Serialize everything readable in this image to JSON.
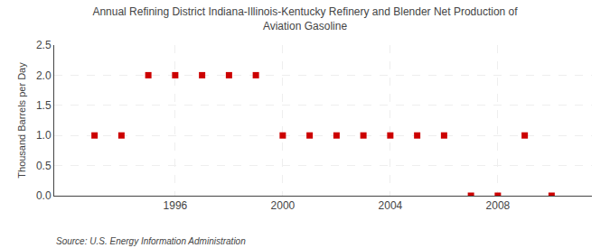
{
  "chart_data": {
    "type": "scatter",
    "title": "Annual Refining District Indiana-Illinois-Kentucky Refinery and Blender Net Production of\nAviation Gasoline",
    "ylabel": "Thousand Barrels per Day",
    "annotations": [
      "Source: U.S. Energy Information Administration"
    ],
    "x": [
      1993,
      1994,
      1995,
      1996,
      1997,
      1998,
      1999,
      2000,
      2001,
      2002,
      2003,
      2004,
      2005,
      2006,
      2007,
      2008,
      2009,
      2010
    ],
    "values": [
      1,
      1,
      2,
      2,
      2,
      2,
      2,
      1,
      1,
      1,
      1,
      1,
      1,
      1,
      0,
      0,
      1,
      0
    ],
    "color": "#cc0000",
    "marker": "square",
    "xlim": [
      1991.5,
      2011.5
    ],
    "ylim": [
      0,
      2.5
    ],
    "xticks": [
      1996,
      2000,
      2004,
      2008
    ],
    "yticks": [
      {
        "value": 0,
        "label": "0.0"
      },
      0.5,
      {
        "value": 1,
        "label": "1.0"
      },
      1.5,
      {
        "value": 2,
        "label": "2.0"
      },
      2.5
    ],
    "grid": true
  }
}
